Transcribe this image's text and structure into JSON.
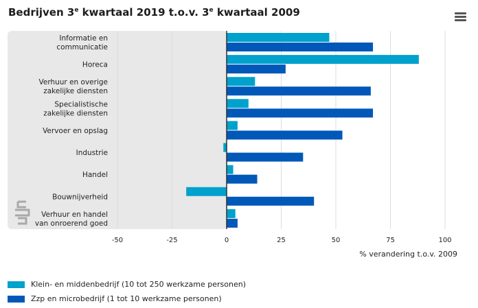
{
  "title_main": "Bedrijven 3",
  "title_sup1": "e",
  "title_mid": " kwartaal 2019 t.o.v. 3",
  "title_sup2": "e",
  "title_end": " kwartaal 2009",
  "menu_icon": "hamburger-icon",
  "logo_icon": "cbs-logo-icon",
  "colors": {
    "klein": "#00a1cd",
    "zzp": "#0058b8",
    "panel": "#e8e8e8",
    "zero_line": "#333333",
    "grid": "#dddddd"
  },
  "chart_data": {
    "type": "bar",
    "orientation": "horizontal",
    "categories": [
      [
        "Informatie en",
        "communicatie"
      ],
      [
        "Horeca"
      ],
      [
        "Verhuur en overige",
        "zakelijke diensten"
      ],
      [
        "Specialistische",
        "zakelijke diensten"
      ],
      [
        "Vervoer en opslag"
      ],
      [
        "Industrie"
      ],
      [
        "Handel"
      ],
      [
        "Bouwnijverheid"
      ],
      [
        "Verhuur en handel",
        "van onroerend goed"
      ]
    ],
    "series": [
      {
        "name": "Klein- en middenbedrijf (10 tot 250 werkzame personen)",
        "values": [
          47,
          88,
          13,
          10,
          5,
          -1.5,
          3,
          -18.5,
          4
        ]
      },
      {
        "name": "Zzp en microbedrijf (1 tot 10 werkzame personen)",
        "values": [
          67,
          27,
          66,
          67,
          53,
          35,
          14,
          40,
          5
        ]
      }
    ],
    "xlim": [
      -50,
      100
    ],
    "xticks": [
      "-50",
      "-25",
      "0",
      "25",
      "50",
      "75",
      "100"
    ],
    "xtick_values": [
      -50,
      -25,
      0,
      25,
      50,
      75,
      100
    ],
    "xlabel": "% verandering t.o.v. 2009",
    "grid": true,
    "legend_position": "bottom-left"
  }
}
